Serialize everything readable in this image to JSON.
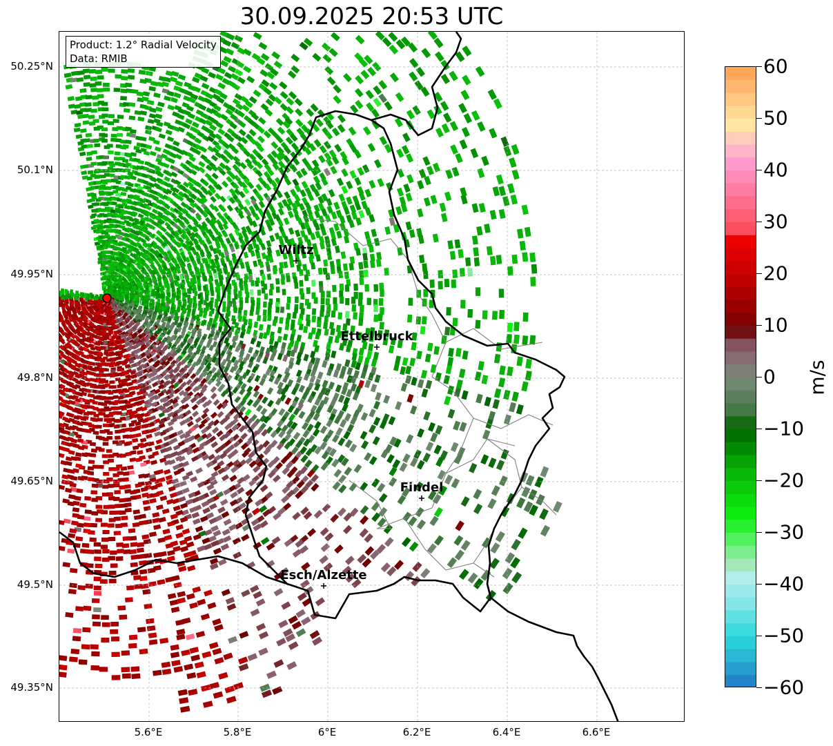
{
  "title": "30.09.2025 20:53 UTC",
  "info": {
    "product": "Product: 1.2° Radial Velocity",
    "data_source": "Data: RMIB"
  },
  "lat_labels": [
    "50.25°N",
    "50.1°N",
    "49.95°N",
    "49.8°N",
    "49.65°N",
    "49.5°N",
    "49.35°N"
  ],
  "lon_labels": [
    "5.6°E",
    "5.8°E",
    "6°E",
    "6.2°E",
    "6.4°E",
    "6.6°E"
  ],
  "cities": [
    {
      "name": "Wiltz"
    },
    {
      "name": "Ettelbruck"
    },
    {
      "name": "Findel"
    },
    {
      "name": "Esch/Alzette"
    }
  ],
  "colorbar": {
    "unit": "m/s",
    "tick_labels": [
      "60",
      "50",
      "40",
      "30",
      "20",
      "10",
      "0",
      "−10",
      "−20",
      "−30",
      "−40",
      "−50",
      "−60"
    ],
    "min": -60,
    "max": 60,
    "stops": [
      {
        "v": -60,
        "color": "#1f78c4"
      },
      {
        "v": -54,
        "color": "#2ab4d4"
      },
      {
        "v": -50,
        "color": "#2ad8dc"
      },
      {
        "v": -44,
        "color": "#7fe6e6"
      },
      {
        "v": -39,
        "color": "#b4ecf0"
      },
      {
        "v": -36,
        "color": "#a0e8b4"
      },
      {
        "v": -32,
        "color": "#5cf06c"
      },
      {
        "v": -27,
        "color": "#0ef00e"
      },
      {
        "v": -18,
        "color": "#07b407"
      },
      {
        "v": -10,
        "color": "#006400"
      },
      {
        "v": -6,
        "color": "#4a7a4a"
      },
      {
        "v": 0,
        "color": "#7a8a7a"
      },
      {
        "v": 5,
        "color": "#8a6070"
      },
      {
        "v": 8,
        "color": "#7a4048"
      },
      {
        "v": 9,
        "color": "#6e0000"
      },
      {
        "v": 17,
        "color": "#b40000"
      },
      {
        "v": 27,
        "color": "#f00000"
      },
      {
        "v": 28,
        "color": "#fa4a5a"
      },
      {
        "v": 36,
        "color": "#ff7aa0"
      },
      {
        "v": 41,
        "color": "#ff98cc"
      },
      {
        "v": 45,
        "color": "#ffc0c8"
      },
      {
        "v": 49,
        "color": "#ffe8a0"
      },
      {
        "v": 55,
        "color": "#ffbe78"
      },
      {
        "v": 60,
        "color": "#ffa050"
      }
    ]
  },
  "colors": {
    "border": "#000000",
    "canton_lines": "#808080",
    "grid": "#b0b0b0",
    "radar_site": "#ff0000",
    "green_band": "#0a8a0a",
    "dark_red": "#8b0000",
    "gray_green": "#5a7a5a"
  }
}
